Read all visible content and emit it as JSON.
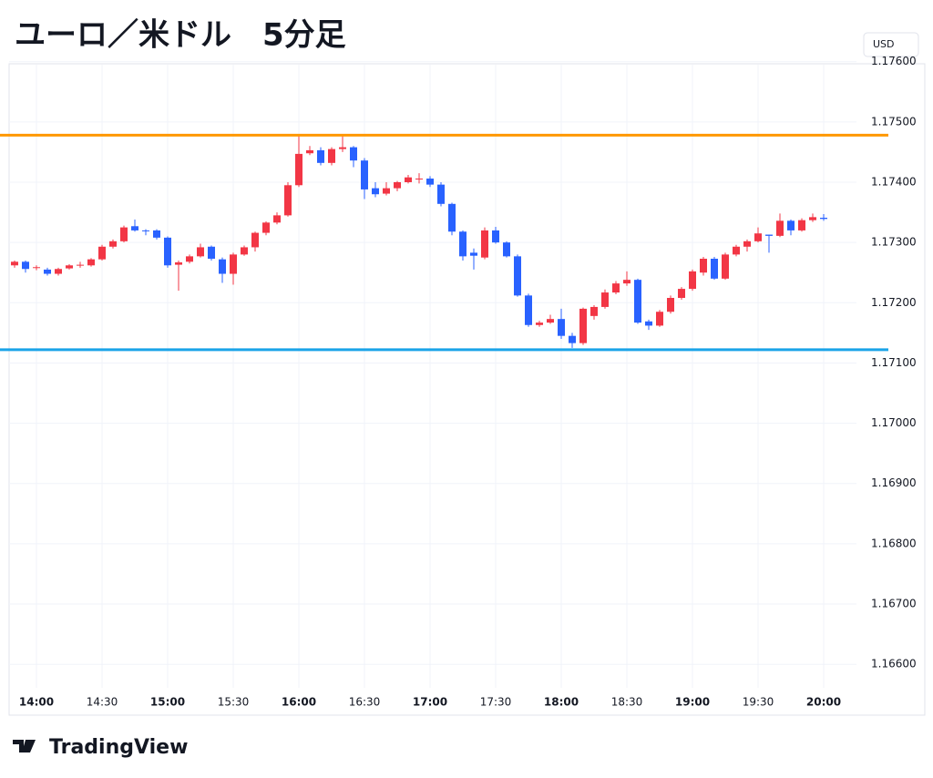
{
  "chart_data": {
    "type": "candlestick",
    "title": "ユーロ／米ドル　5分足",
    "currency": "USD",
    "brand": "TradingView",
    "categories": [
      null,
      null,
      "14:00",
      null,
      null,
      null,
      null,
      null,
      "14:30",
      null,
      null,
      null,
      null,
      null,
      "15:00",
      null,
      null,
      null,
      null,
      null,
      "15:30",
      null,
      null,
      null,
      null,
      null,
      "16:00",
      null,
      null,
      null,
      null,
      null,
      "16:30",
      null,
      null,
      null,
      null,
      null,
      "17:00",
      null,
      null,
      null,
      null,
      null,
      "17:30",
      null,
      null,
      null,
      null,
      null,
      "18:00",
      null,
      null,
      null,
      null,
      null,
      "18:30",
      null,
      null,
      null,
      null,
      null,
      "19:00",
      null,
      null,
      null,
      null,
      null,
      "19:30",
      null,
      null,
      null,
      null,
      null,
      "20:00"
    ],
    "open": [
      1.17262,
      1.17268,
      1.17258,
      1.17255,
      1.17248,
      1.17257,
      1.17262,
      1.17262,
      1.17272,
      1.17293,
      1.17302,
      1.17327,
      1.1732,
      1.1732,
      1.17308,
      1.17263,
      1.17268,
      1.17277,
      1.17293,
      1.17272,
      1.17248,
      1.1728,
      1.17292,
      1.17316,
      1.17333,
      1.17345,
      1.17395,
      1.17448,
      1.17453,
      1.17432,
      1.17455,
      1.17458,
      1.17436,
      1.1739,
      1.17381,
      1.1739,
      1.174,
      1.17405,
      1.17406,
      1.17396,
      1.17364,
      1.17318,
      1.17283,
      1.17275,
      1.1732,
      1.173,
      1.17277,
      1.17212,
      1.17163,
      1.17167,
      1.17173,
      1.17145,
      1.17133,
      1.17178,
      1.17193,
      1.17217,
      1.17232,
      1.17238,
      1.17169,
      1.17162,
      1.17185,
      1.17208,
      1.17223,
      1.1725,
      1.17273,
      1.1724,
      1.1728,
      1.17293,
      1.17302,
      1.17313,
      1.17311,
      1.17336,
      1.1732,
      1.17337,
      1.17341
    ],
    "high": [
      1.1727,
      1.1727,
      1.17262,
      1.17258,
      1.17258,
      1.17264,
      1.17268,
      1.17274,
      1.17296,
      1.17305,
      1.17328,
      1.17338,
      1.17322,
      1.17322,
      1.1731,
      1.1727,
      1.1728,
      1.17298,
      1.17295,
      1.17275,
      1.17283,
      1.17295,
      1.17318,
      1.17335,
      1.1735,
      1.174,
      1.17478,
      1.1746,
      1.17458,
      1.17458,
      1.17478,
      1.1746,
      1.1744,
      1.174,
      1.174,
      1.17402,
      1.17412,
      1.17415,
      1.1741,
      1.174,
      1.17366,
      1.1732,
      1.1729,
      1.17325,
      1.17326,
      1.17302,
      1.1728,
      1.17215,
      1.1717,
      1.1718,
      1.1719,
      1.1715,
      1.17192,
      1.17196,
      1.17222,
      1.17236,
      1.17252,
      1.1724,
      1.17172,
      1.17188,
      1.17212,
      1.17226,
      1.17255,
      1.17276,
      1.17276,
      1.17283,
      1.17296,
      1.17305,
      1.17325,
      1.17313,
      1.17348,
      1.17338,
      1.1734,
      1.17348,
      1.17347
    ],
    "low": [
      1.17258,
      1.1725,
      1.17254,
      1.17245,
      1.17245,
      1.17255,
      1.17258,
      1.1726,
      1.1727,
      1.1729,
      1.173,
      1.17318,
      1.17312,
      1.17305,
      1.17258,
      1.1722,
      1.17265,
      1.17275,
      1.1727,
      1.17233,
      1.1723,
      1.17278,
      1.17285,
      1.17312,
      1.1733,
      1.17343,
      1.17392,
      1.17445,
      1.17428,
      1.17428,
      1.1745,
      1.17425,
      1.17372,
      1.17375,
      1.17378,
      1.17385,
      1.17398,
      1.17398,
      1.17392,
      1.1736,
      1.17312,
      1.1727,
      1.17255,
      1.17272,
      1.17298,
      1.17275,
      1.1721,
      1.1716,
      1.1716,
      1.17165,
      1.1714,
      1.17125,
      1.1713,
      1.17172,
      1.1719,
      1.17214,
      1.17228,
      1.17165,
      1.17155,
      1.1716,
      1.17182,
      1.17205,
      1.1722,
      1.17245,
      1.17238,
      1.17238,
      1.17277,
      1.17285,
      1.173,
      1.17283,
      1.17309,
      1.17312,
      1.17318,
      1.17334,
      1.17336
    ],
    "close": [
      1.17268,
      1.17256,
      1.17259,
      1.17248,
      1.17256,
      1.17262,
      1.17263,
      1.17272,
      1.17293,
      1.17302,
      1.17325,
      1.1732,
      1.17319,
      1.17308,
      1.17262,
      1.17267,
      1.17277,
      1.17292,
      1.17273,
      1.17248,
      1.1728,
      1.17292,
      1.17316,
      1.17333,
      1.17345,
      1.17395,
      1.17447,
      1.17453,
      1.17432,
      1.17455,
      1.17458,
      1.17436,
      1.17388,
      1.1738,
      1.1739,
      1.174,
      1.17408,
      1.17406,
      1.17396,
      1.17364,
      1.17318,
      1.17277,
      1.17278,
      1.1732,
      1.173,
      1.17277,
      1.17212,
      1.17163,
      1.17167,
      1.17173,
      1.17145,
      1.17133,
      1.1719,
      1.17193,
      1.17217,
      1.17232,
      1.17238,
      1.17167,
      1.17162,
      1.17185,
      1.17208,
      1.17223,
      1.17252,
      1.17273,
      1.1724,
      1.1728,
      1.17293,
      1.17302,
      1.17315,
      1.17311,
      1.17336,
      1.1732,
      1.17337,
      1.17342,
      1.17339
    ],
    "up_color": "#f23645",
    "down_color": "#2962ff",
    "hlines": [
      {
        "value": 1.17478,
        "color": "#ff9800"
      },
      {
        "value": 1.17122,
        "color": "#1aa3e8"
      }
    ],
    "ylim": [
      1.16561,
      1.17595
    ],
    "yticks": [
      {
        "value": 1.166,
        "label": "1.16600"
      },
      {
        "value": 1.167,
        "label": "1.16700"
      },
      {
        "value": 1.168,
        "label": "1.16800"
      },
      {
        "value": 1.169,
        "label": "1.16900"
      },
      {
        "value": 1.17,
        "label": "1.17000"
      },
      {
        "value": 1.171,
        "label": "1.17100"
      },
      {
        "value": 1.172,
        "label": "1.17200"
      },
      {
        "value": 1.173,
        "label": "1.17300"
      },
      {
        "value": 1.174,
        "label": "1.17400"
      },
      {
        "value": 1.175,
        "label": "1.17500"
      },
      {
        "value": 1.176,
        "label": "1.17600"
      }
    ],
    "grid": true
  }
}
